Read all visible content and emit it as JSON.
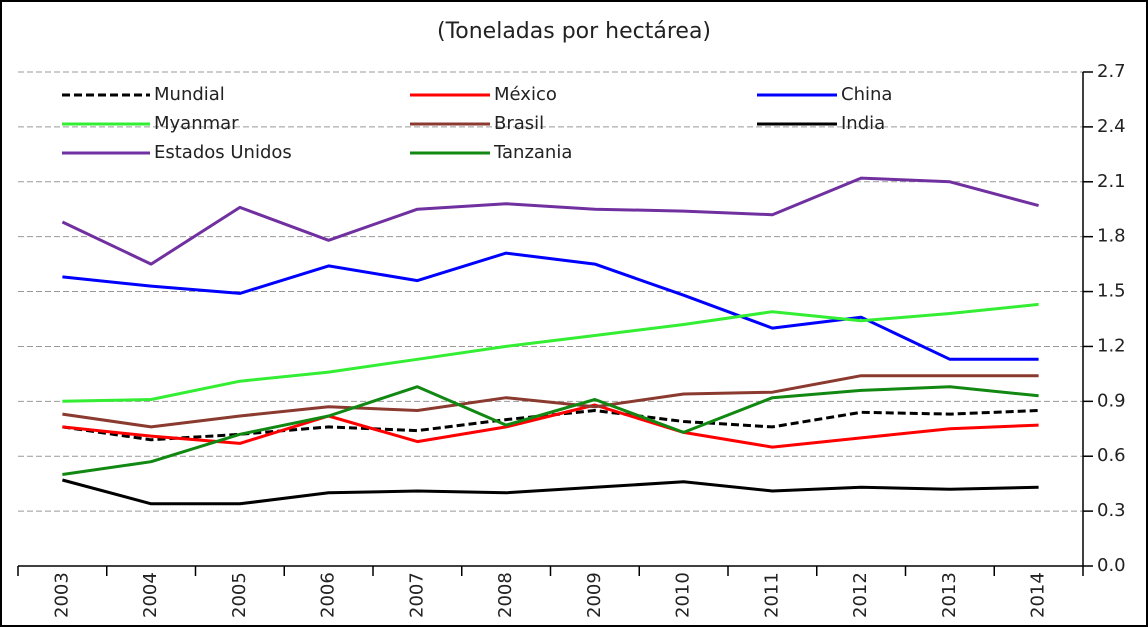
{
  "chart_data": {
    "type": "line",
    "title": "(Toneladas por hectárea)",
    "categories": [
      "2003",
      "2004",
      "2005",
      "2006",
      "2007",
      "2008",
      "2009",
      "2010",
      "2011",
      "2012",
      "2013",
      "2014"
    ],
    "ylim": [
      0,
      2.7
    ],
    "yticks": [
      {
        "value": 0,
        "label": "0.0"
      },
      0.3,
      0.6,
      0.9,
      1.2,
      1.5,
      1.8,
      2.1,
      2.4,
      2.7
    ],
    "grid": true,
    "y_axis_side": "right",
    "series": [
      {
        "name": "Mundial",
        "color": "#000000",
        "line_style": "dashed",
        "values": [
          0.76,
          0.69,
          0.72,
          0.76,
          0.74,
          0.8,
          0.85,
          0.79,
          0.76,
          0.84,
          0.83,
          0.85
        ]
      },
      {
        "name": "México",
        "color": "#ff0000",
        "values": [
          0.76,
          0.71,
          0.67,
          0.82,
          0.68,
          0.76,
          0.88,
          0.73,
          0.65,
          0.7,
          0.75,
          0.77
        ]
      },
      {
        "name": "China",
        "color": "#0000ff",
        "values": [
          1.58,
          1.53,
          1.49,
          1.64,
          1.56,
          1.71,
          1.65,
          1.48,
          1.3,
          1.36,
          1.13,
          1.13
        ]
      },
      {
        "name": "Myanmar",
        "color": "#33ee33",
        "values": [
          0.9,
          0.91,
          1.01,
          1.06,
          1.13,
          1.2,
          1.26,
          1.32,
          1.39,
          1.34,
          1.38,
          1.43
        ]
      },
      {
        "name": "Brasil",
        "color": "#8b3a2f",
        "values": [
          0.83,
          0.76,
          0.82,
          0.87,
          0.85,
          0.92,
          0.87,
          0.94,
          0.95,
          1.04,
          1.04,
          1.04
        ]
      },
      {
        "name": "India",
        "color": "#000000",
        "values": [
          0.47,
          0.34,
          0.34,
          0.4,
          0.41,
          0.4,
          0.43,
          0.46,
          0.41,
          0.43,
          0.42,
          0.43
        ]
      },
      {
        "name": "Estados Unidos",
        "color": "#7030a0",
        "values": [
          1.88,
          1.65,
          1.96,
          1.78,
          1.95,
          1.98,
          1.95,
          1.94,
          1.92,
          2.12,
          2.1,
          1.97
        ]
      },
      {
        "name": "Tanzania",
        "color": "#118811",
        "values": [
          0.5,
          0.57,
          0.72,
          0.82,
          0.98,
          0.77,
          0.91,
          0.73,
          0.92,
          0.96,
          0.98,
          0.93
        ]
      }
    ]
  }
}
